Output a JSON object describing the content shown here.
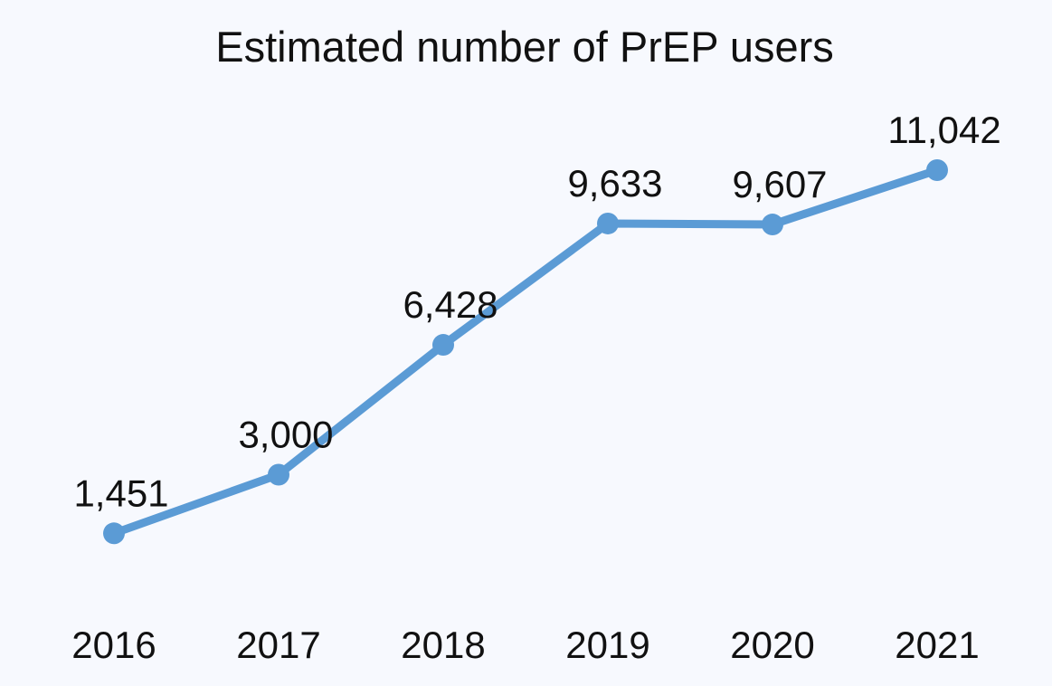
{
  "chart_data": {
    "type": "line",
    "title": "Estimated number of PrEP users",
    "xlabel": "",
    "ylabel": "",
    "categories": [
      "2016",
      "2017",
      "2018",
      "2019",
      "2020",
      "2021"
    ],
    "values": [
      1451,
      3000,
      6428,
      9633,
      9607,
      11042
    ],
    "data_labels": [
      "1,451",
      "3,000",
      "6,428",
      "9,633",
      "9,607",
      "11,042"
    ],
    "ylim": [
      0,
      11042
    ],
    "grid": false,
    "legend": "none",
    "colors": {
      "line": "#5b9bd5",
      "background": "#f7f9fe",
      "text": "#111111"
    }
  }
}
